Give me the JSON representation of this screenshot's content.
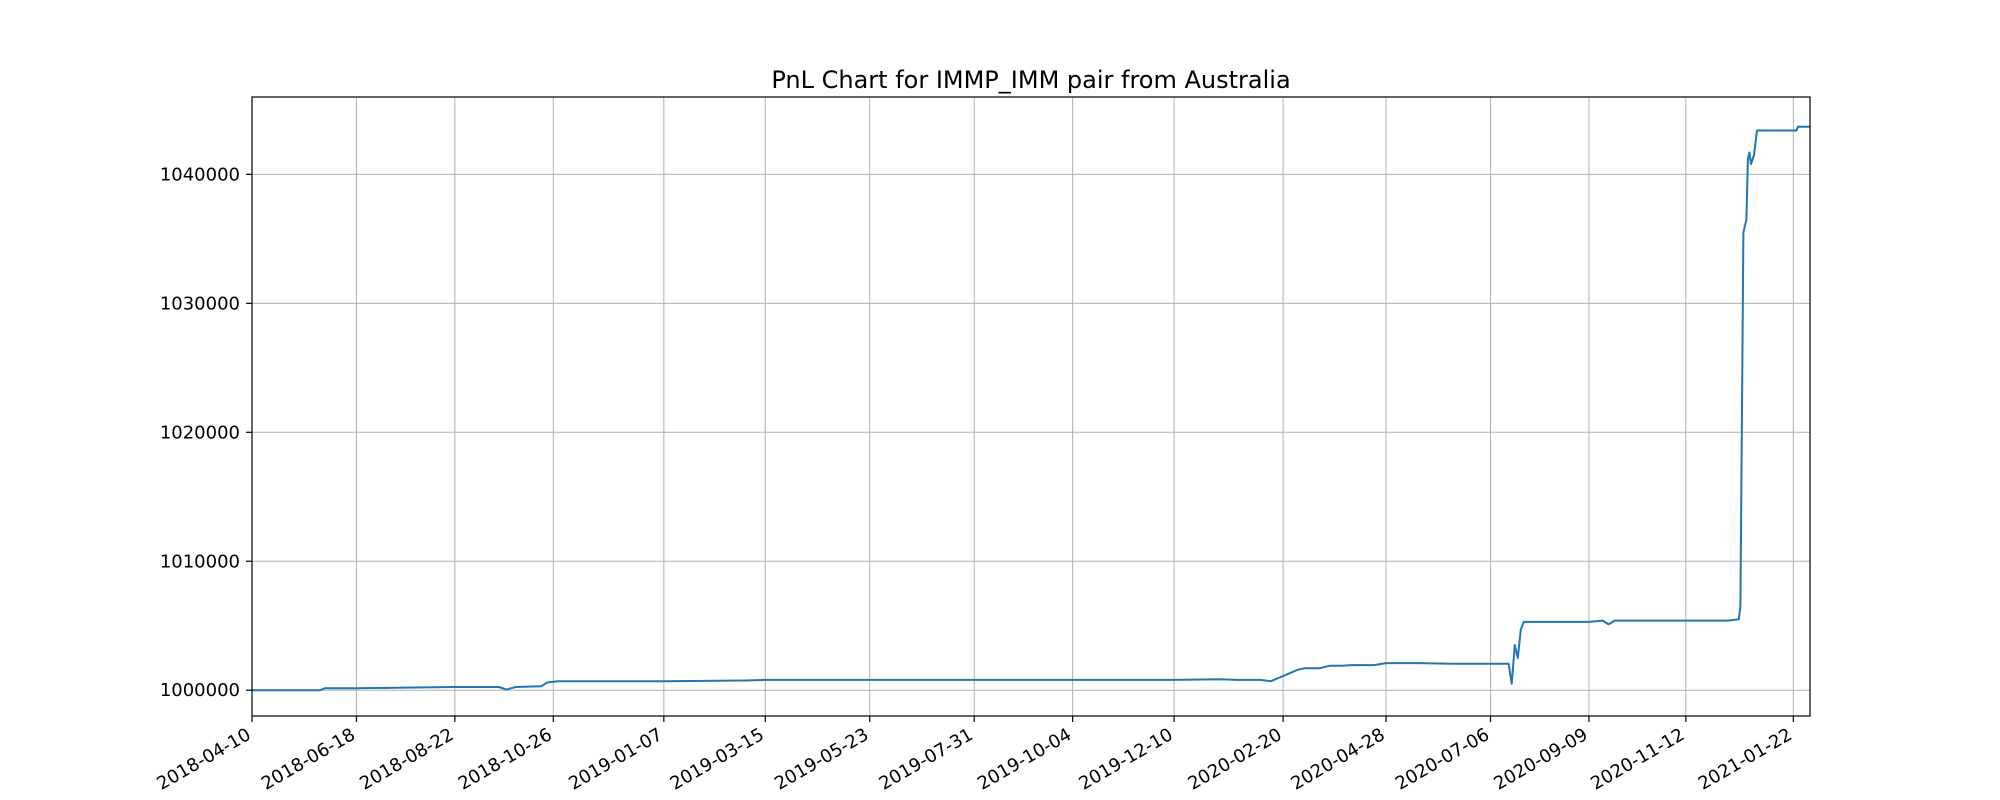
{
  "chart_data": {
    "type": "line",
    "title": "PnL Chart for IMMP_IMM pair from Australia",
    "xlabel": "",
    "ylabel": "",
    "grid": true,
    "xlim": [
      "2018-04-10",
      "2021-02-02"
    ],
    "ylim": [
      998000,
      1046000
    ],
    "x_ticks": [
      "2018-04-10",
      "2018-06-18",
      "2018-08-22",
      "2018-10-26",
      "2019-01-07",
      "2019-03-15",
      "2019-05-23",
      "2019-07-31",
      "2019-10-04",
      "2019-12-10",
      "2020-02-20",
      "2020-04-28",
      "2020-07-06",
      "2020-09-09",
      "2020-11-12",
      "2021-01-22"
    ],
    "y_ticks": [
      1000000,
      1010000,
      1020000,
      1030000,
      1040000
    ],
    "series": [
      {
        "color": "#1f77b4",
        "x": [
          "2018-04-10",
          "2018-05-25",
          "2018-05-28",
          "2018-06-18",
          "2018-07-20",
          "2018-08-22",
          "2018-09-20",
          "2018-09-25",
          "2018-10-01",
          "2018-10-18",
          "2018-10-22",
          "2018-10-29",
          "2018-12-15",
          "2019-01-07",
          "2019-03-01",
          "2019-03-15",
          "2019-05-23",
          "2019-07-31",
          "2019-10-04",
          "2019-12-10",
          "2020-01-10",
          "2020-01-20",
          "2020-02-05",
          "2020-02-12",
          "2020-02-20",
          "2020-02-24",
          "2020-03-01",
          "2020-03-05",
          "2020-03-15",
          "2020-03-22",
          "2020-03-30",
          "2020-04-05",
          "2020-04-12",
          "2020-04-20",
          "2020-04-28",
          "2020-05-20",
          "2020-06-10",
          "2020-07-06",
          "2020-07-18",
          "2020-07-20",
          "2020-07-22",
          "2020-07-24",
          "2020-07-26",
          "2020-07-28",
          "2020-08-02",
          "2020-09-09",
          "2020-09-18",
          "2020-09-22",
          "2020-09-26",
          "2020-10-01",
          "2020-11-12",
          "2020-12-10",
          "2020-12-17",
          "2020-12-18",
          "2020-12-20",
          "2020-12-22",
          "2020-12-23",
          "2020-12-24",
          "2020-12-25",
          "2020-12-27",
          "2020-12-29",
          "2020-12-31",
          "2021-01-02",
          "2021-01-10",
          "2021-01-20",
          "2021-01-24",
          "2021-01-25",
          "2021-02-02"
        ],
        "y": [
          1000000,
          1000000,
          1000150,
          1000150,
          1000200,
          1000250,
          1000250,
          1000050,
          1000250,
          1000300,
          1000600,
          1000700,
          1000700,
          1000700,
          1000750,
          1000800,
          1000800,
          1000800,
          1000800,
          1000800,
          1000850,
          1000800,
          1000800,
          1000700,
          1001100,
          1001300,
          1001600,
          1001700,
          1001700,
          1001900,
          1001900,
          1001950,
          1001950,
          1001950,
          1002100,
          1002100,
          1002050,
          1002050,
          1002050,
          1000500,
          1003500,
          1002500,
          1004700,
          1005300,
          1005300,
          1005300,
          1005400,
          1005100,
          1005400,
          1005400,
          1005400,
          1005400,
          1005500,
          1006500,
          1035500,
          1036500,
          1041200,
          1041700,
          1040800,
          1041500,
          1043400,
          1043400,
          1043400,
          1043400,
          1043400,
          1043400,
          1043700,
          1043700
        ]
      }
    ]
  }
}
